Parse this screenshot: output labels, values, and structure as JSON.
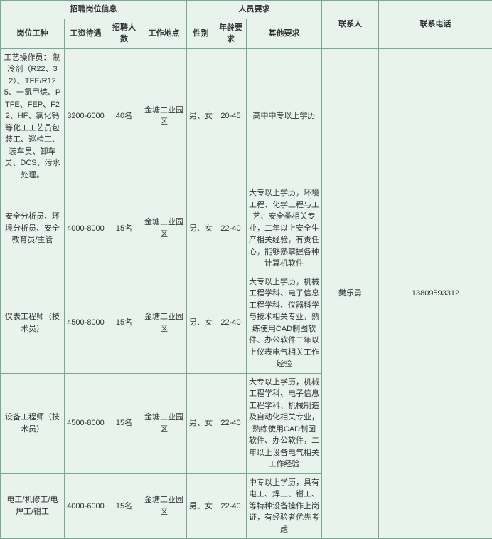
{
  "colors": {
    "background": "#e8f3ee",
    "border": "#7aa896",
    "text": "#333333"
  },
  "headers": {
    "group_jobinfo": "招聘岗位信息",
    "group_requirements": "人员要求",
    "contact": "联系人",
    "phone": "联系电话",
    "job": "岗位工种",
    "salary": "工资待遇",
    "count": "招聘人数",
    "location": "工作地点",
    "sex": "性别",
    "age": "年龄要求",
    "other": "其他要求"
  },
  "rows": [
    {
      "job": "工艺操作员：  制冷剂（R22、32）、TFE/R125、一氯甲烷、PTFE、FEP、F22、HF、氯化钙等化工工艺员包装工、巡检工、装车员、卸车员、DCS、污水处理。",
      "salary": "3200-6000",
      "count": "40名",
      "location": "金塘工业园区",
      "sex": "男、女",
      "age": "20-45",
      "other": "高中中专以上学历"
    },
    {
      "job": "安全分析员、环境分析员、安全教育员/主管",
      "salary": "4000-8000",
      "count": "15名",
      "location": "金塘工业园区",
      "sex": "男、女",
      "age": "22-40",
      "other": "大专以上学历，环境工程、化学工程与工艺、安全类相关专业，二年以上安全生产相关经验，有责任心，能够熟掌握各种计算机软件"
    },
    {
      "job": "仪表工程师（技术员）",
      "salary": "4500-8000",
      "count": "15名",
      "location": "金塘工业园区",
      "sex": "男、女",
      "age": "22-40",
      "other": "大专以上学历，机械工程学科、电子信息工程学科、仪器科学与技术相关专业，熟练使用CAD制图软件、办公软件二年以上仪表电气相关工作经验"
    },
    {
      "job": "设备工程师（技术员）",
      "salary": "4500-8000",
      "count": "15名",
      "location": "金塘工业园区",
      "sex": "男、女",
      "age": "22-40",
      "other": "大专以上学历，机械工程学科、电子信息工程学科、机械制造及自动化相关专业，熟练使用CAD制图软件、办公软件，二年以上设备电气相关工作经验"
    },
    {
      "job": "电工/机修工/电焊工/钳工",
      "salary": "4000-6000",
      "count": "15名",
      "location": "金塘工业园区",
      "sex": "男、女",
      "age": "22-40",
      "other": "中专以上学历，具有电工、焊工、钳工、等特种设备操作上岗证，有经验者优先考虑"
    }
  ],
  "contact": "樊乐勇",
  "phone": "13809593312"
}
